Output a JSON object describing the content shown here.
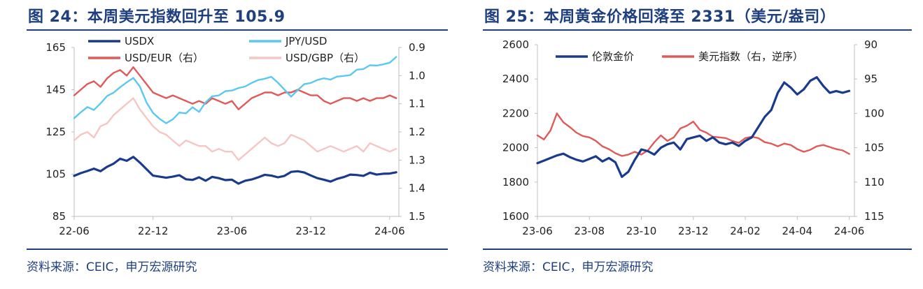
{
  "left": {
    "title": "图 24：本周美元指数回升至 105.9",
    "source": "资料来源：CEIC，申万宏源研究"
  },
  "right": {
    "title": "图 25：本周黄金价格回落至 2331（美元/盎司）",
    "source": "资料来源：CEIC，申万宏源研究"
  },
  "chart_data": [
    {
      "type": "line",
      "title": "本周美元指数回升至 105.9",
      "x_tick_labels": [
        "22-06",
        "22-12",
        "23-06",
        "23-12",
        "24-06"
      ],
      "x_range": [
        0,
        24.7
      ],
      "x_ticks": [
        0,
        6,
        12,
        18,
        24
      ],
      "ylim_left": [
        85,
        165
      ],
      "y_ticks_left": [
        85,
        105,
        125,
        145,
        165
      ],
      "ylim_right": [
        1.5,
        0.9
      ],
      "y_ticks_right": [
        "1.5",
        "1.4",
        "1.3",
        "1.2",
        "1.1",
        "1.0",
        "0.9"
      ],
      "y_ticks_right_values": [
        1.5,
        1.4,
        1.3,
        1.2,
        1.1,
        1.0,
        0.9
      ],
      "series": [
        {
          "name": "USDX",
          "axis": "left",
          "color": "#1a3a8c",
          "width": 3.2,
          "x": [
            0,
            0.5,
            1,
            1.5,
            2,
            2.5,
            3,
            3.5,
            4,
            4.5,
            5,
            5.5,
            6,
            6.5,
            7,
            7.5,
            8,
            8.5,
            9,
            9.5,
            10,
            10.5,
            11,
            11.5,
            12,
            12.5,
            13,
            13.5,
            14,
            14.5,
            15,
            15.5,
            16,
            16.5,
            17,
            17.5,
            18,
            18.5,
            19,
            19.5,
            20,
            20.5,
            21,
            21.5,
            22,
            22.5,
            23,
            23.5,
            24,
            24.5
          ],
          "values": [
            104.2,
            105.5,
            106.5,
            107.6,
            106.4,
            108.5,
            110.0,
            112.3,
            111.3,
            113.2,
            110.5,
            107.4,
            104.3,
            103.8,
            103.3,
            103.8,
            104.5,
            102.6,
            102.3,
            103.5,
            101.9,
            103.7,
            103.1,
            102.2,
            102.4,
            100.5,
            101.9,
            102.5,
            103.5,
            104.7,
            104.3,
            103.5,
            104.2,
            106.1,
            106.4,
            105.8,
            104.4,
            103.1,
            102.4,
            101.5,
            102.8,
            103.6,
            104.8,
            104.6,
            104.2,
            105.7,
            104.8,
            105.2,
            105.3,
            105.9
          ]
        },
        {
          "name": "JPY/USD",
          "axis": "left",
          "color": "#5bc8f0",
          "width": 2.4,
          "x": [
            0,
            0.5,
            1,
            1.5,
            2,
            2.5,
            3,
            3.5,
            4,
            4.5,
            5,
            5.5,
            6,
            6.5,
            7,
            7.5,
            8,
            8.5,
            9,
            9.5,
            10,
            10.5,
            11,
            11.5,
            12,
            12.5,
            13,
            13.5,
            14,
            14.5,
            15,
            15.5,
            16,
            16.5,
            17,
            17.5,
            18,
            18.5,
            19,
            19.5,
            20,
            20.5,
            21,
            21.5,
            22,
            22.5,
            23,
            23.5,
            24,
            24.5
          ],
          "values": [
            131.5,
            134.3,
            136.8,
            135.4,
            138.5,
            142.0,
            143.6,
            146.2,
            148.5,
            150.6,
            146.5,
            139.0,
            134.0,
            131.2,
            129.1,
            131.0,
            134.2,
            133.8,
            136.7,
            134.5,
            139.0,
            141.9,
            142.3,
            144.3,
            144.6,
            145.8,
            146.5,
            148.2,
            149.6,
            150.2,
            151.1,
            148.3,
            145.0,
            141.7,
            144.8,
            147.6,
            148.2,
            149.6,
            150.4,
            149.8,
            151.2,
            151.5,
            151.9,
            154.5,
            154.8,
            156.6,
            156.4,
            157.0,
            157.8,
            160.5
          ]
        },
        {
          "name": "USD/EUR（右）",
          "axis": "right",
          "color": "#e05a5a",
          "width": 2.4,
          "x": [
            0,
            0.5,
            1,
            1.5,
            2,
            2.5,
            3,
            3.5,
            4,
            4.5,
            5,
            5.5,
            6,
            6.5,
            7,
            7.5,
            8,
            8.5,
            9,
            9.5,
            10,
            10.5,
            11,
            11.5,
            12,
            12.5,
            13,
            13.5,
            14,
            14.5,
            15,
            15.5,
            16,
            16.5,
            17,
            17.5,
            18,
            18.5,
            19,
            19.5,
            20,
            20.5,
            21,
            21.5,
            22,
            22.5,
            23,
            23.5,
            24,
            24.5
          ],
          "values": [
            1.07,
            1.05,
            1.03,
            1.02,
            1.04,
            1.01,
            0.99,
            0.98,
            1.0,
            0.97,
            1.0,
            1.03,
            1.06,
            1.07,
            1.08,
            1.07,
            1.08,
            1.09,
            1.1,
            1.09,
            1.1,
            1.08,
            1.09,
            1.1,
            1.09,
            1.12,
            1.1,
            1.08,
            1.07,
            1.06,
            1.06,
            1.07,
            1.06,
            1.06,
            1.05,
            1.06,
            1.07,
            1.07,
            1.09,
            1.1,
            1.09,
            1.08,
            1.08,
            1.09,
            1.08,
            1.09,
            1.08,
            1.08,
            1.07,
            1.08
          ]
        },
        {
          "name": "USD/GBP（右）",
          "axis": "right",
          "color": "#f5c6c6",
          "width": 2.4,
          "x": [
            0,
            0.5,
            1,
            1.5,
            2,
            2.5,
            3,
            3.5,
            4,
            4.5,
            5,
            5.5,
            6,
            6.5,
            7,
            7.5,
            8,
            8.5,
            9,
            9.5,
            10,
            10.5,
            11,
            11.5,
            12,
            12.5,
            13,
            13.5,
            14,
            14.5,
            15,
            15.5,
            16,
            16.5,
            17,
            17.5,
            18,
            18.5,
            19,
            19.5,
            20,
            20.5,
            21,
            21.5,
            22,
            22.5,
            23,
            23.5,
            24,
            24.5
          ],
          "values": [
            1.23,
            1.21,
            1.2,
            1.22,
            1.18,
            1.17,
            1.14,
            1.12,
            1.1,
            1.08,
            1.12,
            1.15,
            1.18,
            1.2,
            1.21,
            1.23,
            1.25,
            1.23,
            1.24,
            1.25,
            1.25,
            1.27,
            1.26,
            1.27,
            1.27,
            1.3,
            1.28,
            1.26,
            1.24,
            1.22,
            1.24,
            1.25,
            1.24,
            1.21,
            1.22,
            1.23,
            1.25,
            1.27,
            1.26,
            1.25,
            1.26,
            1.27,
            1.26,
            1.25,
            1.27,
            1.24,
            1.25,
            1.26,
            1.27,
            1.26
          ]
        }
      ]
    },
    {
      "type": "line",
      "title": "本周黄金价格回落至 2331（美元/盎司）",
      "x_tick_labels": [
        "23-06",
        "23-08",
        "23-10",
        "23-12",
        "24-02",
        "24-04",
        "24-06"
      ],
      "x_range": [
        0,
        12.2
      ],
      "x_ticks": [
        0,
        2,
        4,
        6,
        8,
        10,
        12
      ],
      "ylim_left": [
        1600,
        2600
      ],
      "y_ticks_left": [
        1600,
        1800,
        2000,
        2200,
        2400,
        2600
      ],
      "ylim_right": [
        115,
        90
      ],
      "y_ticks_right": [
        "115",
        "110",
        "105",
        "100",
        "95",
        "90"
      ],
      "y_ticks_right_values": [
        115,
        110,
        105,
        100,
        95,
        90
      ],
      "series": [
        {
          "name": "伦敦金价",
          "axis": "left",
          "color": "#1a3a8c",
          "width": 3.2,
          "x": [
            0,
            0.25,
            0.5,
            0.75,
            1,
            1.25,
            1.5,
            1.75,
            2,
            2.25,
            2.5,
            2.75,
            3,
            3.25,
            3.5,
            3.75,
            4,
            4.25,
            4.5,
            4.75,
            5,
            5.25,
            5.5,
            5.75,
            6,
            6.25,
            6.5,
            6.75,
            7,
            7.25,
            7.5,
            7.75,
            8,
            8.25,
            8.5,
            8.75,
            9,
            9.25,
            9.5,
            9.75,
            10,
            10.25,
            10.5,
            10.75,
            11,
            11.25,
            11.5,
            11.75,
            12
          ],
          "values": [
            1910,
            1925,
            1940,
            1955,
            1965,
            1945,
            1930,
            1920,
            1935,
            1950,
            1920,
            1940,
            1915,
            1830,
            1860,
            1930,
            1990,
            1980,
            1960,
            2000,
            2020,
            2030,
            1990,
            2050,
            2060,
            2070,
            2040,
            2060,
            2030,
            2020,
            2030,
            2010,
            2040,
            2060,
            2120,
            2180,
            2220,
            2320,
            2380,
            2350,
            2310,
            2340,
            2390,
            2410,
            2360,
            2320,
            2330,
            2320,
            2331
          ]
        },
        {
          "name": "美元指数（右，逆序）",
          "axis": "right",
          "color": "#e05a5a",
          "width": 2.4,
          "x": [
            0,
            0.25,
            0.5,
            0.75,
            1,
            1.25,
            1.5,
            1.75,
            2,
            2.25,
            2.5,
            2.75,
            3,
            3.25,
            3.5,
            3.75,
            4,
            4.25,
            4.5,
            4.75,
            5,
            5.25,
            5.5,
            5.75,
            6,
            6.25,
            6.5,
            6.75,
            7,
            7.25,
            7.5,
            7.75,
            8,
            8.25,
            8.5,
            8.75,
            9,
            9.25,
            9.5,
            9.75,
            10,
            10.25,
            10.5,
            10.75,
            11,
            11.25,
            11.5,
            11.75,
            12
          ],
          "values": [
            103.2,
            103.8,
            102.5,
            100.0,
            101.3,
            102.0,
            102.8,
            103.3,
            103.5,
            104.0,
            104.8,
            105.2,
            105.8,
            106.2,
            106.0,
            105.6,
            106.0,
            105.4,
            104.2,
            103.2,
            104.0,
            103.5,
            102.2,
            101.8,
            101.2,
            102.4,
            102.8,
            103.4,
            103.5,
            103.6,
            104.0,
            104.3,
            103.6,
            103.4,
            103.6,
            104.2,
            104.4,
            104.8,
            104.4,
            104.6,
            105.2,
            105.6,
            105.3,
            104.8,
            104.6,
            104.9,
            105.2,
            105.4,
            105.9
          ]
        }
      ]
    }
  ]
}
